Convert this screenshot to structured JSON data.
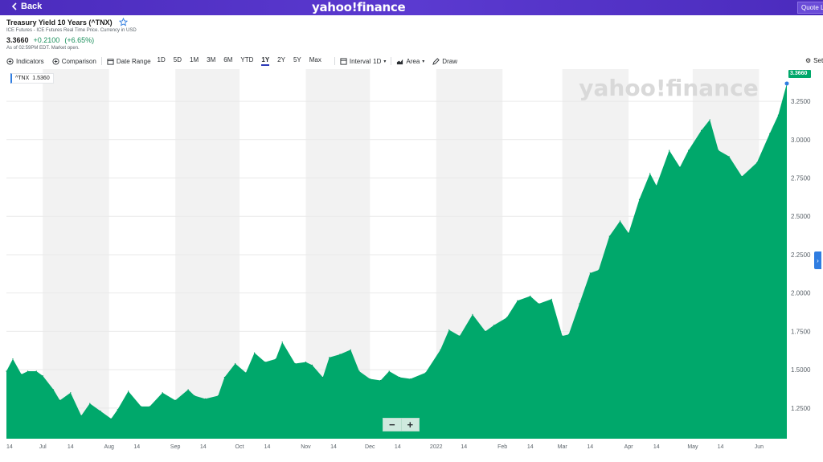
{
  "nav": {
    "back_label": "Back",
    "brand": "yahoo!finance",
    "quote_lookup": "Quote Lookup"
  },
  "quote": {
    "title": "Treasury Yield 10 Years (^TNX)",
    "subtitle": "ICE Futures - ICE Futures Real Time Price. Currency in USD",
    "price": "3.3660",
    "change": "+0.2100",
    "change_pct": "(+6.65%)",
    "as_of": "As of 02:59PM EDT. Market open."
  },
  "toolbar": {
    "indicators": "Indicators",
    "comparison": "Comparison",
    "date_range": "Date Range",
    "ranges": [
      "1D",
      "5D",
      "1M",
      "3M",
      "6M",
      "YTD",
      "1Y",
      "2Y",
      "5Y",
      "Max"
    ],
    "active_range": "1Y",
    "interval": "Interval",
    "interval_value": "1D",
    "chart_type": "Area",
    "draw": "Draw",
    "settings": "Settings"
  },
  "legend_tag": {
    "symbol": "^TNX",
    "value": "1.5360"
  },
  "last_price_tag": "3.3660",
  "watermark": "yahoo!finance",
  "zoom": {
    "minus": "−",
    "plus": "+"
  },
  "colors": {
    "area": "#00a86b",
    "accent": "#2f7de1",
    "brand": "#5b3ad0",
    "positive": "#1a8f5b"
  },
  "chart_data": {
    "type": "area",
    "series": [
      {
        "name": "^TNX",
        "x": [
          "2021-06-14",
          "2021-06-17",
          "2021-06-21",
          "2021-06-24",
          "2021-06-28",
          "2021-07-01",
          "2021-07-06",
          "2021-07-09",
          "2021-07-14",
          "2021-07-19",
          "2021-07-23",
          "2021-07-28",
          "2021-08-02",
          "2021-08-05",
          "2021-08-10",
          "2021-08-16",
          "2021-08-20",
          "2021-08-26",
          "2021-09-01",
          "2021-09-07",
          "2021-09-10",
          "2021-09-15",
          "2021-09-21",
          "2021-09-24",
          "2021-09-29",
          "2021-10-04",
          "2021-10-08",
          "2021-10-13",
          "2021-10-18",
          "2021-10-21",
          "2021-10-27",
          "2021-11-01",
          "2021-11-04",
          "2021-11-09",
          "2021-11-12",
          "2021-11-17",
          "2021-11-22",
          "2021-11-26",
          "2021-12-01",
          "2021-12-06",
          "2021-12-10",
          "2021-12-15",
          "2021-12-20",
          "2021-12-27",
          "2022-01-03",
          "2022-01-07",
          "2022-01-12",
          "2022-01-18",
          "2022-01-24",
          "2022-01-28",
          "2022-02-03",
          "2022-02-08",
          "2022-02-14",
          "2022-02-18",
          "2022-02-24",
          "2022-03-01",
          "2022-03-04",
          "2022-03-09",
          "2022-03-14",
          "2022-03-18",
          "2022-03-23",
          "2022-03-28",
          "2022-04-01",
          "2022-04-06",
          "2022-04-11",
          "2022-04-14",
          "2022-04-20",
          "2022-04-25",
          "2022-04-29",
          "2022-05-05",
          "2022-05-09",
          "2022-05-13",
          "2022-05-18",
          "2022-05-24",
          "2022-05-31",
          "2022-06-06",
          "2022-06-10",
          "2022-06-14"
        ],
        "values": [
          1.49,
          1.57,
          1.47,
          1.49,
          1.49,
          1.46,
          1.37,
          1.3,
          1.35,
          1.2,
          1.28,
          1.23,
          1.18,
          1.24,
          1.36,
          1.26,
          1.26,
          1.35,
          1.3,
          1.37,
          1.33,
          1.31,
          1.33,
          1.45,
          1.54,
          1.48,
          1.61,
          1.55,
          1.57,
          1.68,
          1.54,
          1.55,
          1.53,
          1.45,
          1.58,
          1.6,
          1.63,
          1.49,
          1.44,
          1.43,
          1.49,
          1.45,
          1.44,
          1.48,
          1.63,
          1.76,
          1.72,
          1.86,
          1.75,
          1.79,
          1.84,
          1.95,
          1.98,
          1.93,
          1.96,
          1.72,
          1.73,
          1.93,
          2.13,
          2.15,
          2.37,
          2.47,
          2.39,
          2.61,
          2.78,
          2.7,
          2.93,
          2.82,
          2.93,
          3.06,
          3.13,
          2.93,
          2.89,
          2.76,
          2.85,
          3.04,
          3.16,
          3.366
        ]
      }
    ],
    "x_tick_labels": [
      "14",
      "Jul",
      "14",
      "Aug",
      "14",
      "Sep",
      "14",
      "Oct",
      "14",
      "Nov",
      "14",
      "Dec",
      "14",
      "2022",
      "14",
      "Feb",
      "14",
      "Mar",
      "14",
      "Apr",
      "14",
      "May",
      "14",
      "Jun"
    ],
    "y_tick_labels": [
      "1.2500",
      "1.5000",
      "1.7500",
      "2.0000",
      "2.2500",
      "2.5000",
      "2.7500",
      "3.0000",
      "3.2500"
    ],
    "ylim": [
      1.05,
      3.46
    ],
    "grid": "vertical month bands",
    "legend_position": "top-left"
  }
}
